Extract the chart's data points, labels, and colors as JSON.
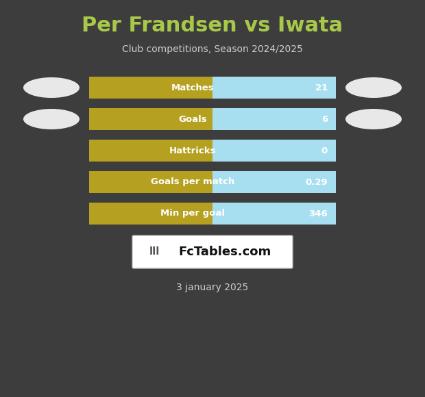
{
  "title": "Per Frandsen vs Iwata",
  "subtitle": "Club competitions, Season 2024/2025",
  "date": "3 january 2025",
  "background_color": "#3d3d3d",
  "title_color": "#a8c84a",
  "subtitle_color": "#cccccc",
  "date_color": "#cccccc",
  "rows": [
    {
      "label": "Matches",
      "value": "21"
    },
    {
      "label": "Goals",
      "value": "6"
    },
    {
      "label": "Hattricks",
      "value": "0"
    },
    {
      "label": "Goals per match",
      "value": "0.29"
    },
    {
      "label": "Min per goal",
      "value": "346"
    }
  ],
  "bar_left_color": "#b5a020",
  "bar_right_color": "#a8dff0",
  "bar_text_color": "#ffffff",
  "logo_box_color": "#ffffff",
  "logo_text": "FcTables.com",
  "oval_color": "#e8e8e8"
}
